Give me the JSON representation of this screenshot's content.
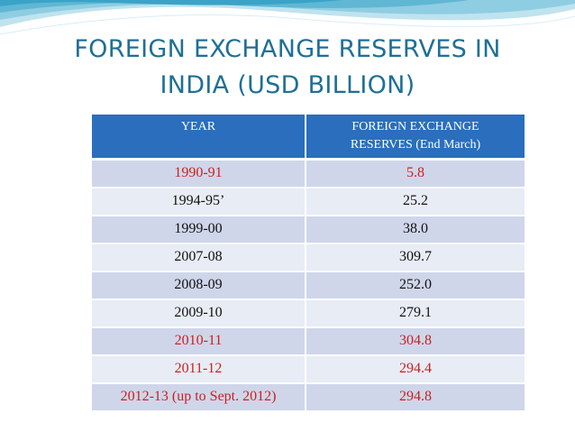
{
  "title": {
    "line1": "FOREIGN EXCHANGE RESERVES IN",
    "line2": "INDIA (USD BILLION)"
  },
  "table": {
    "headers": {
      "year": "YEAR",
      "reserves_line1": "FOREIGN EXCHANGE",
      "reserves_line2": "RESERVES (End March)"
    },
    "rows": [
      {
        "year": "1990-91",
        "value": "5.8",
        "year_red": true,
        "value_red": true
      },
      {
        "year": "1994-95’",
        "value": "25.2",
        "year_red": false,
        "value_red": false
      },
      {
        "year": "1999-00",
        "value": "38.0",
        "year_red": false,
        "value_red": false
      },
      {
        "year": "2007-08",
        "value": "309.7",
        "year_red": false,
        "value_red": false
      },
      {
        "year": "2008-09",
        "value": "252.0",
        "year_red": false,
        "value_red": false
      },
      {
        "year": "2009-10",
        "value": "279.1",
        "year_red": false,
        "value_red": false
      },
      {
        "year": "2010-11",
        "value": "304.8",
        "year_red": true,
        "value_red": true
      },
      {
        "year": "2011-12",
        "value": "294.4",
        "year_red": true,
        "value_red": true
      },
      {
        "year": "2012-13 (up to Sept. 2012)",
        "value": "294.8",
        "year_red": true,
        "value_red": true
      }
    ]
  },
  "colors": {
    "title": "#1f6f96",
    "header_bg": "#2a6ebd",
    "band_bg": "#cfd6ea",
    "plain_bg": "#e8ecf5",
    "red_text": "#cc1f1f"
  }
}
